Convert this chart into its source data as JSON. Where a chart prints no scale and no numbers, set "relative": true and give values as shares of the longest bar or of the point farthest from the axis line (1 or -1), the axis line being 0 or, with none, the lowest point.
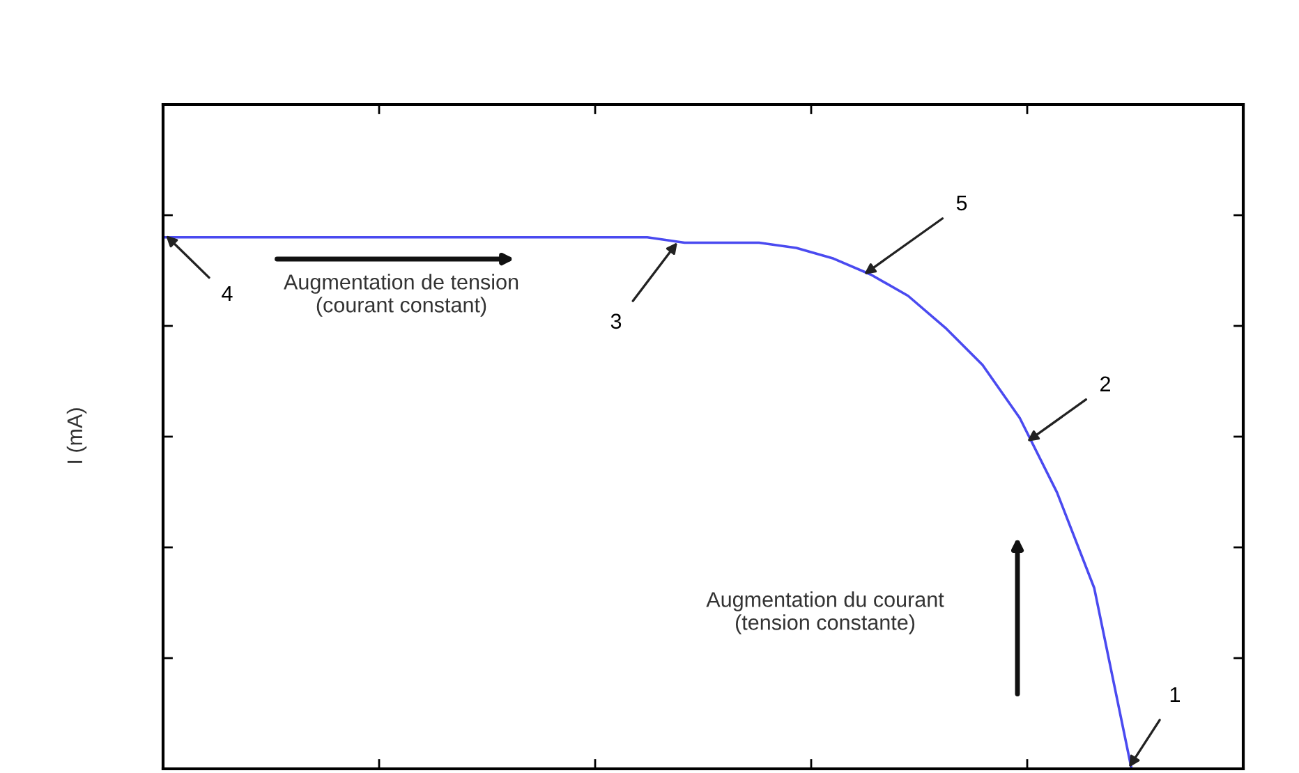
{
  "chart_data": {
    "type": "line",
    "relative": true,
    "ylabel": "I (mA)",
    "grid": false,
    "legend": false,
    "categories": [
      null,
      null,
      null,
      null,
      null,
      null,
      null,
      null,
      null,
      null,
      null,
      null,
      null,
      null,
      null,
      null,
      null,
      null,
      null,
      null,
      null,
      null,
      null,
      null,
      null,
      null,
      null,
      null,
      null,
      null
    ],
    "series": [
      {
        "color": "#4a4af0",
        "values": [
          1.0,
          1.0,
          1.0,
          1.0,
          1.0,
          1.0,
          1.0,
          1.0,
          1.0,
          1.0,
          1.0,
          1.0,
          1.0,
          1.0,
          0.99,
          0.99,
          0.99,
          0.98,
          0.96,
          0.93,
          0.89,
          0.83,
          0.76,
          0.66,
          0.52,
          0.34,
          0,
          null,
          null,
          null
        ]
      }
    ],
    "annotations": [
      "4",
      "3",
      "5",
      "2",
      "1",
      "Augmentation de tension\n(courant constant)",
      "Augmentation du courant\n(tension constante)"
    ]
  }
}
